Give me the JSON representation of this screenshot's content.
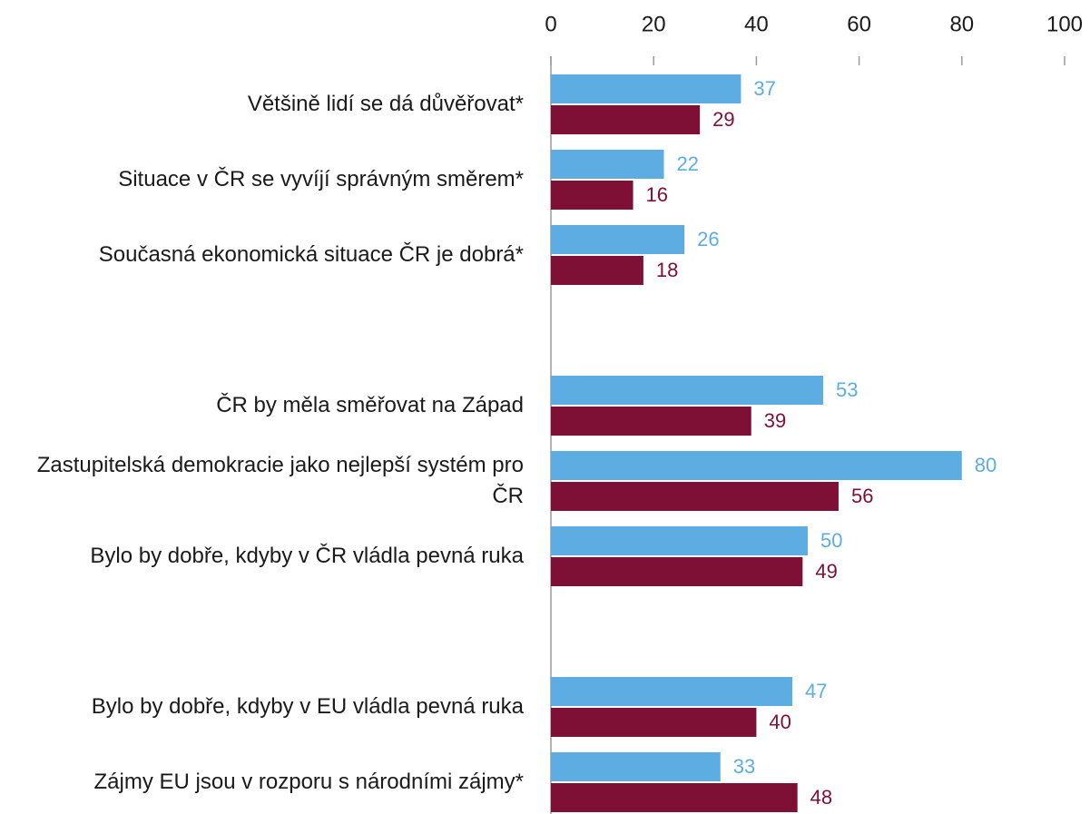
{
  "chart_data": {
    "type": "bar",
    "orientation": "horizontal",
    "categories": [
      "Většině lidí se dá důvěřovat*",
      "Situace v ČR se vyvíjí správným směrem*",
      "Současná ekonomická situace ČR je dobrá*",
      null,
      "ČR by měla směřovat na Západ",
      "Zastupitelská demokracie jako nejlepší systém pro ČR",
      "Bylo by dobře, kdyby v ČR vládla pevná ruka",
      null,
      "Bylo by dobře, kdyby v EU vládla pevná ruka",
      "Zájmy EU jsou v rozporu s národními zájmy*"
    ],
    "series": [
      {
        "color": "#5dade2",
        "values": [
          37,
          22,
          26,
          null,
          53,
          80,
          50,
          null,
          47,
          33
        ]
      },
      {
        "color": "#7d1034",
        "values": [
          29,
          16,
          18,
          null,
          39,
          56,
          49,
          null,
          40,
          48
        ]
      }
    ],
    "xlim": [
      0,
      100
    ],
    "xticks": [
      0,
      20,
      40,
      60,
      80,
      100
    ]
  }
}
